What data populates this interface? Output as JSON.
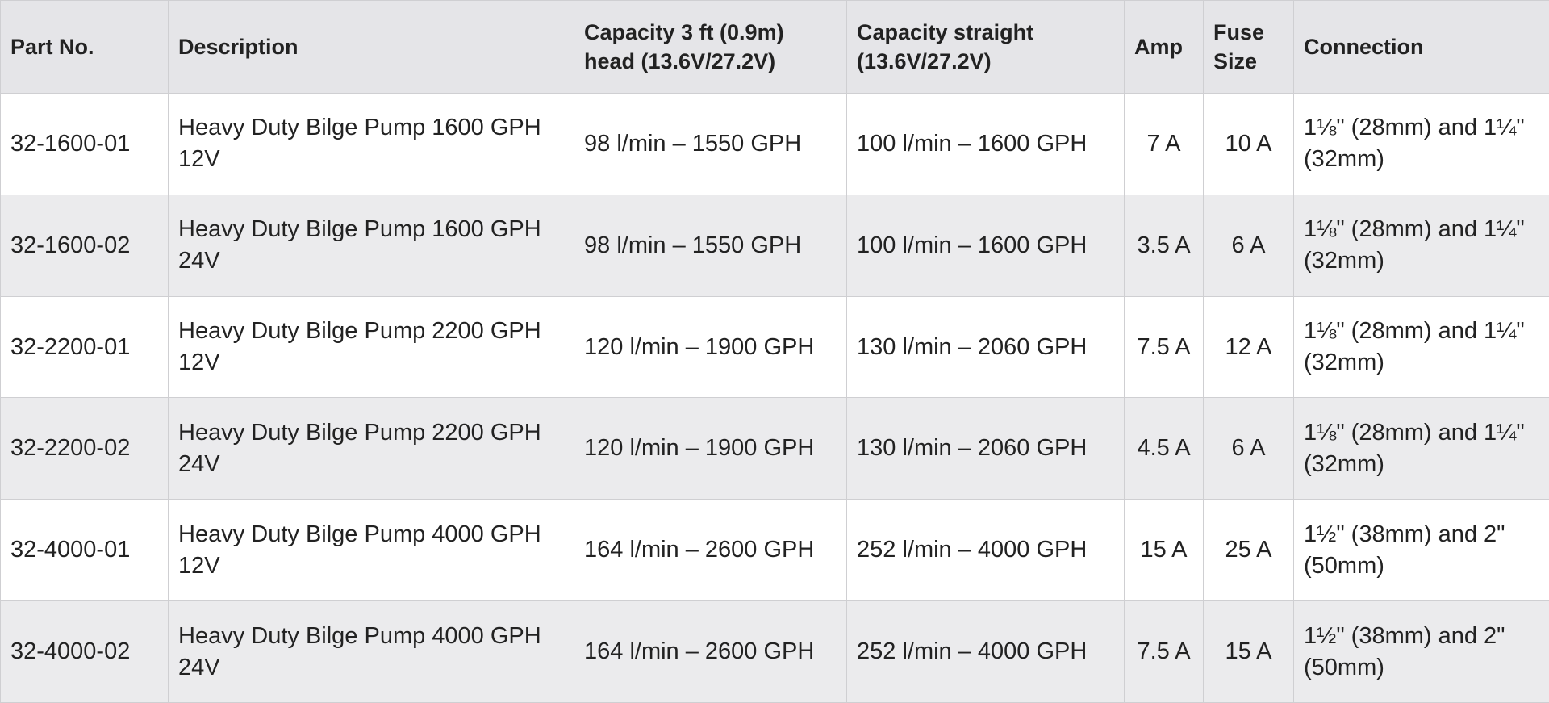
{
  "table": {
    "header": [
      "Part No.",
      "Description",
      "Capacity 3 ft (0.9m) head (13.6V/27.2V)",
      "Capacity straight (13.6V/27.2V)",
      "Amp",
      "Fuse Size",
      "Connection"
    ],
    "rows": [
      [
        "32-1600-01",
        "Heavy Duty Bilge Pump 1600 GPH 12V",
        "98 l/min – 1550 GPH",
        "100 l/min – 1600 GPH",
        "7 A",
        "10 A",
        "1⅛\" (28mm) and 1¼\" (32mm)"
      ],
      [
        "32-1600-02",
        "Heavy Duty Bilge Pump 1600 GPH 24V",
        "98 l/min – 1550 GPH",
        "100 l/min – 1600 GPH",
        "3.5 A",
        "6 A",
        "1⅛\" (28mm) and 1¼\" (32mm)"
      ],
      [
        "32-2200-01",
        "Heavy Duty Bilge Pump 2200 GPH 12V",
        "120 l/min – 1900 GPH",
        "130 l/min – 2060 GPH",
        "7.5 A",
        "12 A",
        "1⅛\" (28mm) and 1¼\" (32mm)"
      ],
      [
        "32-2200-02",
        "Heavy Duty Bilge Pump 2200 GPH 24V",
        "120 l/min – 1900 GPH",
        "130 l/min – 2060 GPH",
        "4.5 A",
        "6 A",
        "1⅛\" (28mm) and 1¼\" (32mm)"
      ],
      [
        "32-4000-01",
        "Heavy Duty Bilge Pump 4000 GPH 12V",
        "164 l/min – 2600 GPH",
        "252 l/min – 4000 GPH",
        "15 A",
        "25 A",
        "1½\" (38mm) and 2\" (50mm)"
      ],
      [
        "32-4000-02",
        "Heavy Duty Bilge Pump 4000 GPH 24V",
        "164 l/min – 2600 GPH",
        "252 l/min – 4000 GPH",
        "7.5 A",
        "15 A",
        "1½\" (38mm) and 2\" (50mm)"
      ]
    ]
  }
}
